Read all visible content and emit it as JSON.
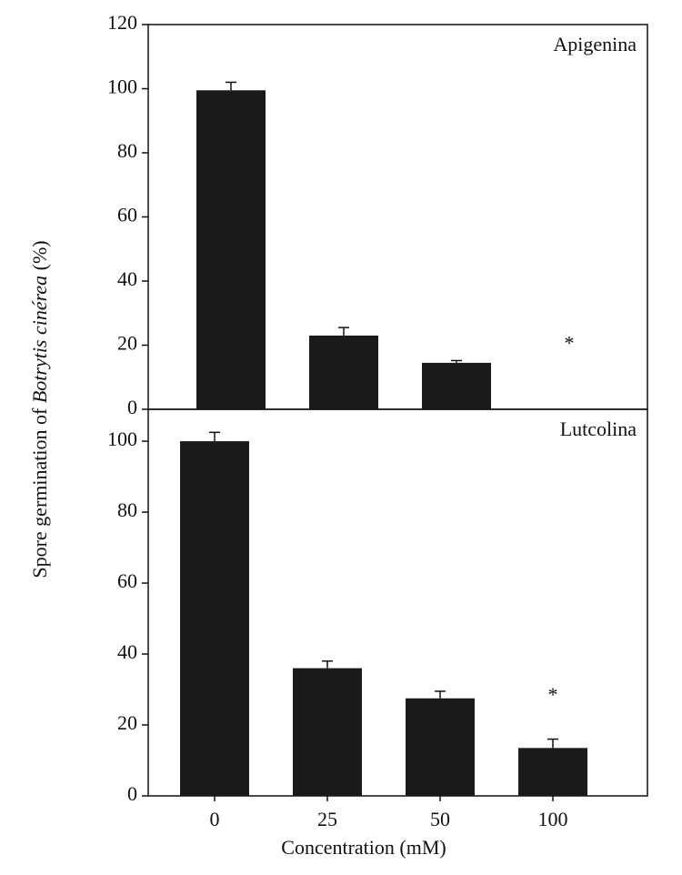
{
  "chart_data": [
    {
      "type": "bar",
      "label": "Apigenina",
      "y_label": [
        "Spore germination of ",
        "Botrytis cinérea",
        " (%)"
      ],
      "values": [
        99.5,
        23,
        14.5,
        0
      ],
      "errors": [
        2.5,
        2.5,
        0.7,
        0
      ],
      "color": "#1a1a1a",
      "annotation": {
        "text": "*",
        "index": 3,
        "y": 20
      },
      "ylim": [
        0,
        120
      ],
      "yticks": [
        0,
        20,
        40,
        60,
        80,
        100,
        120
      ]
    },
    {
      "type": "bar",
      "label": "Lutcolina",
      "x_label": "Concentration (mM)",
      "categories": [
        "0",
        "25",
        "50",
        "100"
      ],
      "values": [
        100,
        36,
        27.5,
        13.5
      ],
      "errors": [
        2.5,
        2,
        2,
        2.5
      ],
      "color": "#1a1a1a",
      "annotation": {
        "text": "*",
        "index": 3,
        "y": 28
      },
      "ylim": [
        0,
        109
      ],
      "yticks": [
        0,
        20,
        40,
        60,
        80,
        100
      ]
    }
  ]
}
